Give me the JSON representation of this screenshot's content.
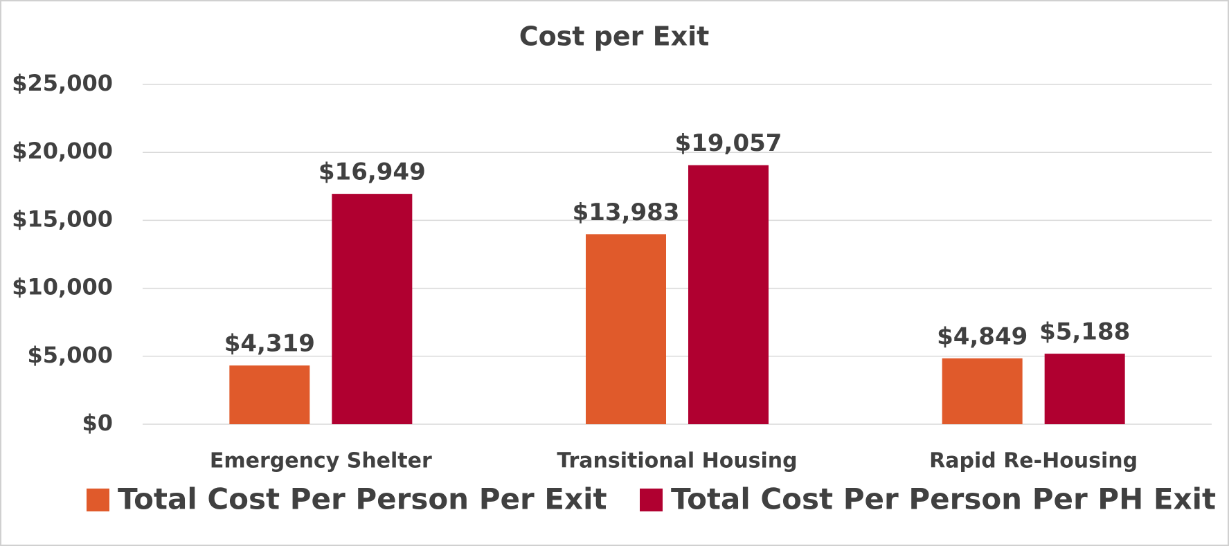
{
  "chart_data": {
    "type": "bar",
    "title": "Cost per Exit",
    "categories": [
      "Emergency Shelter",
      "Transitional Housing",
      "Rapid Re-Housing"
    ],
    "series": [
      {
        "name": "Total Cost Per Person Per Exit",
        "color": "#e05a2b",
        "values": [
          4319,
          13983,
          4849
        ],
        "value_labels": [
          "$4,319",
          "$13,983",
          "$4,849"
        ]
      },
      {
        "name": "Total Cost Per Person Per PH Exit",
        "color": "#b00030",
        "values": [
          16949,
          19057,
          5188
        ],
        "value_labels": [
          "$16,949",
          "$19,057",
          "$5,188"
        ]
      }
    ],
    "ylim": [
      0,
      25000
    ],
    "yticks": [
      {
        "value": 0,
        "label": "$0"
      },
      {
        "value": 5000,
        "label": "$5,000"
      },
      {
        "value": 10000,
        "label": "$10,000"
      },
      {
        "value": 15000,
        "label": "$15,000"
      },
      {
        "value": 20000,
        "label": "$20,000"
      },
      {
        "value": 25000,
        "label": "$25,000"
      }
    ],
    "grid": true,
    "legend": "bottom"
  }
}
